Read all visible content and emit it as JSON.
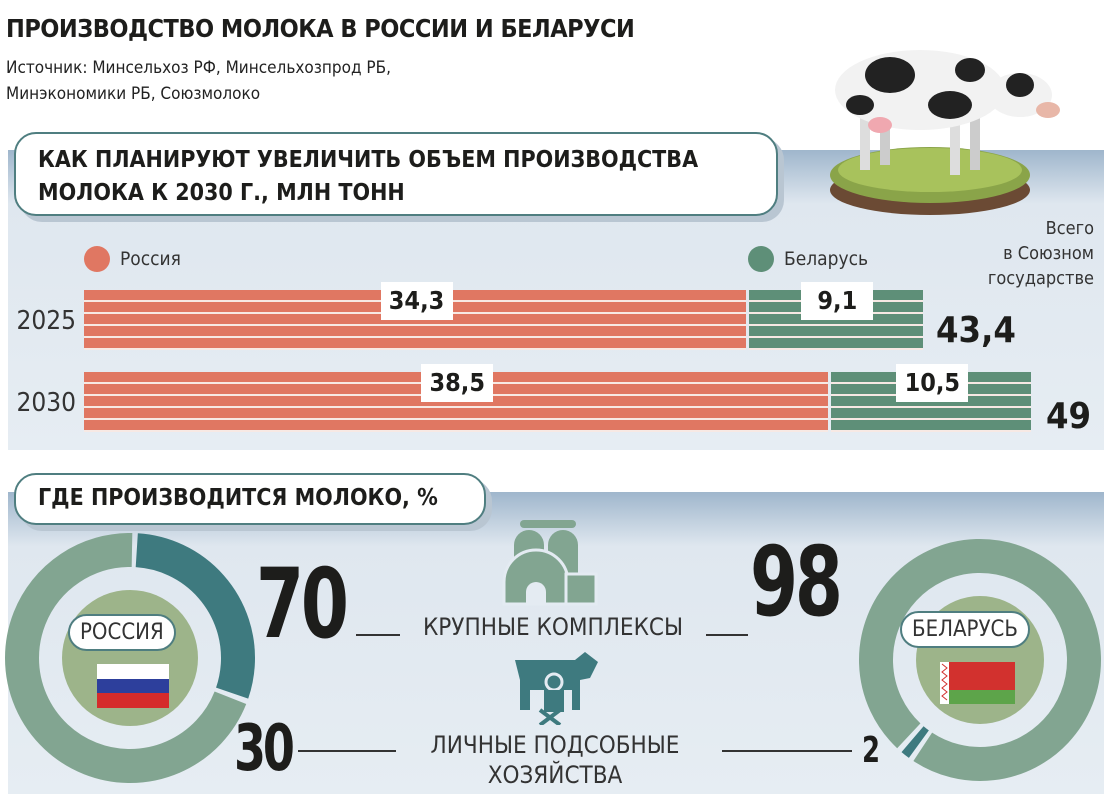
{
  "header": {
    "title": "ПРОИЗВОДСТВО МОЛОКА В РОССИИ И БЕЛАРУСИ",
    "source_line1": "Источник: Минсельхоз РФ, Минсельхозпрод РБ,",
    "source_line2": "Минэкономики РБ, Союзмолоко"
  },
  "chart_data": [
    {
      "type": "bar",
      "stacked": true,
      "orientation": "horizontal",
      "title": "КАК ПЛАНИРУЮТ УВЕЛИЧИТЬ ОБЪЕМ ПРОИЗВОДСТВА МОЛОКА К 2030 Г., МЛН ТОНН",
      "categories": [
        "2025",
        "2030"
      ],
      "series": [
        {
          "name": "Россия",
          "values": [
            34.3,
            38.5
          ],
          "labels": [
            "34,3",
            "38,5"
          ],
          "color": "#e07762"
        },
        {
          "name": "Беларусь",
          "values": [
            9.1,
            10.5
          ],
          "labels": [
            "9,1",
            "10,5"
          ],
          "color": "#5e8f78"
        }
      ],
      "totals_header": "Всего в Союзном государстве",
      "totals": [
        "43,4",
        "49"
      ]
    },
    {
      "type": "pie",
      "donut": true,
      "title": "ГДЕ ПРОИЗВОДИТСЯ МОЛОКО, %",
      "categories": [
        "КРУПНЫЕ КОМПЛЕКСЫ",
        "ЛИЧНЫЕ ПОДСОБНЫЕ ХОЗЯЙСТВА"
      ],
      "series": [
        {
          "name": "РОССИЯ",
          "values": [
            70,
            30
          ]
        },
        {
          "name": "БЕЛАРУСЬ",
          "values": [
            98,
            2
          ]
        }
      ],
      "colors": [
        "#82a591",
        "#3e7a7f"
      ]
    }
  ],
  "labels": {
    "totals_l1": "Всего",
    "totals_l2": "в Союзном",
    "totals_l3": "государстве",
    "cat1": "КРУПНЫЕ КОМПЛЕКСЫ",
    "cat2_l1": "ЛИЧНЫЕ ПОДСОБНЫЕ",
    "cat2_l2": "ХОЗЯЙСТВА",
    "ru_big": "70",
    "ru_small": "30",
    "by_big": "98",
    "by_small": "2",
    "title1_l1": "КАК ПЛАНИРУЮТ УВЕЛИЧИТЬ ОБЪЕМ ПРОИЗВОДСТВА",
    "title1_l2": "МОЛОКА К 2030 Г., МЛН ТОНН"
  }
}
